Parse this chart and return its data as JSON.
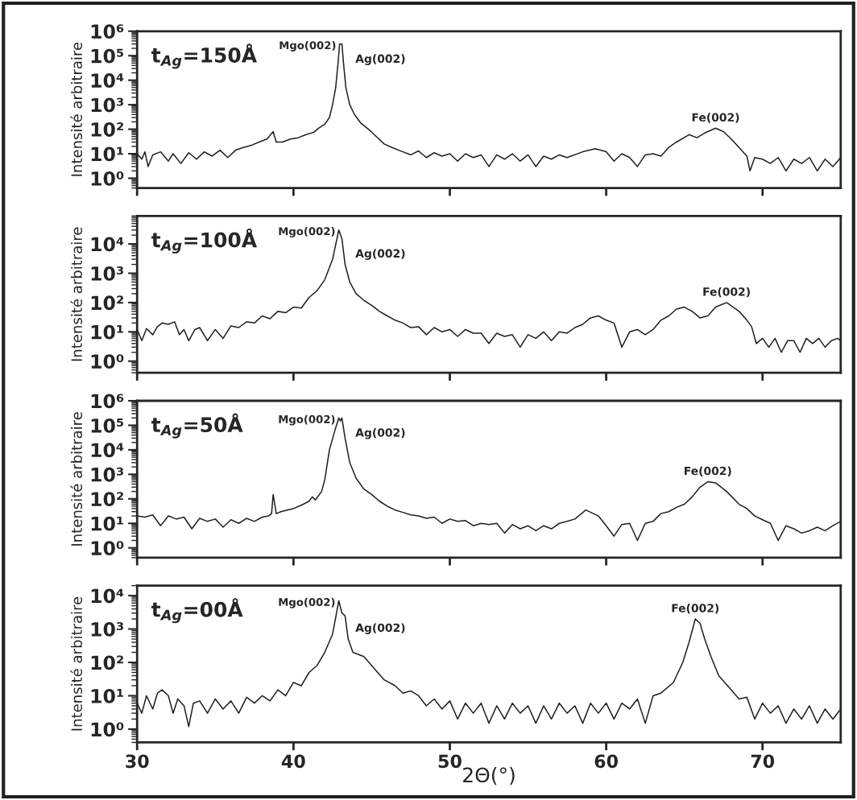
{
  "chart_data": [
    {
      "type": "line",
      "ylabel": "Intensité arbitraire",
      "tick_labels": "y",
      "xlim": [
        30,
        75
      ],
      "xticks": [
        30,
        40,
        50,
        60,
        70
      ],
      "ylim": [
        0.4,
        1000000
      ],
      "yticks": [
        {
          "value": 1,
          "label": "10⁰"
        },
        {
          "value": 10,
          "label": "10¹"
        },
        {
          "value": 100,
          "label": "10²"
        },
        {
          "value": 1000,
          "label": "10³"
        },
        {
          "value": 10000,
          "label": "10⁴"
        },
        {
          "value": 100000,
          "label": "10⁵"
        },
        {
          "value": 1000000,
          "label": "10⁶"
        }
      ],
      "log": "y",
      "annotations": [
        "t$_{Ag}$=150Å",
        {
          "text": "Mgo(002)",
          "x": 42.95,
          "y": 300000
        },
        {
          "text": "Ag(002)",
          "x": 43.1,
          "y": 300000
        },
        {
          "text": "Fe(002)",
          "x": 67,
          "y": 110
        }
      ],
      "series": [
        {
          "color": "#231f20",
          "x": [
            30,
            30.3,
            30.5,
            30.7,
            31,
            31.5,
            32,
            32.3,
            32.8,
            33.3,
            33.8,
            34.3,
            34.8,
            35.3,
            35.8,
            36.3,
            36.8,
            37.3,
            37.8,
            38.3,
            38.7,
            38.9,
            39.3,
            39.8,
            40.3,
            40.8,
            41.3,
            41.6,
            42,
            42.3,
            42.5,
            42.7,
            42.85,
            42.95,
            43.1,
            43.2,
            43.35,
            43.6,
            43.9,
            44.3,
            44.8,
            45.3,
            45.8,
            46.3,
            47,
            47.5,
            48,
            48.5,
            49,
            49.5,
            50,
            50.5,
            51,
            51.5,
            52,
            52.5,
            53,
            53.5,
            54,
            54.5,
            55,
            55.5,
            56,
            56.5,
            57,
            57.5,
            58.5,
            59.3,
            60,
            60.5,
            61,
            61.5,
            62,
            62.5,
            63,
            63.5,
            64,
            64.5,
            65.3,
            65.8,
            66.3,
            67,
            67.5,
            68,
            68.5,
            69,
            69.2,
            69.5,
            70,
            70.5,
            71,
            71.5,
            72,
            72.5,
            73,
            73.5,
            74,
            74.5,
            75
          ],
          "values": [
            10,
            6,
            12,
            3,
            9,
            12,
            5,
            10,
            4,
            11,
            6,
            12,
            8,
            14,
            7,
            14,
            18,
            22,
            30,
            40,
            80,
            30,
            30,
            40,
            45,
            60,
            75,
            110,
            160,
            300,
            1000,
            5000,
            50000,
            300000,
            300000,
            50000,
            5000,
            1000,
            400,
            180,
            100,
            50,
            25,
            18,
            12,
            9,
            13,
            7,
            11,
            8,
            10,
            5,
            10,
            7,
            9,
            3,
            9,
            6,
            10,
            5,
            9,
            3,
            8,
            6,
            9,
            7,
            12,
            16,
            12,
            5,
            10,
            7,
            3,
            9,
            10,
            8,
            18,
            30,
            60,
            45,
            70,
            110,
            80,
            40,
            18,
            8,
            2,
            7,
            6,
            4,
            7,
            2,
            6,
            4,
            7,
            2,
            6,
            3,
            7
          ]
        }
      ]
    },
    {
      "type": "line",
      "ylabel": "Intensité arbitraire",
      "tick_labels": "y",
      "xlim": [
        30,
        75
      ],
      "xticks": [
        30,
        40,
        50,
        60,
        70
      ],
      "ylim": [
        0.4,
        90000
      ],
      "yticks": [
        {
          "value": 1,
          "label": "10⁰"
        },
        {
          "value": 10,
          "label": "10¹"
        },
        {
          "value": 100,
          "label": "10²"
        },
        {
          "value": 1000,
          "label": "10³"
        },
        {
          "value": 10000,
          "label": "10⁴"
        }
      ],
      "log": "y",
      "annotations": [
        "t$_{Ag}$=100Å",
        {
          "text": "Mgo(002)",
          "x": 42.9,
          "y": 30000
        },
        {
          "text": "Ag(002)",
          "x": 43.1,
          "y": 15000
        },
        {
          "text": "Fe(002)",
          "x": 67.7,
          "y": 100
        }
      ],
      "series": [
        {
          "color": "#231f20",
          "x": [
            30,
            30.3,
            30.6,
            31,
            31.3,
            31.6,
            32,
            32.4,
            32.7,
            33,
            33.3,
            33.7,
            34,
            34.5,
            35,
            35.5,
            36,
            36.5,
            37,
            37.5,
            38,
            38.5,
            39,
            39.5,
            40,
            40.5,
            41,
            41.5,
            42,
            42.5,
            42.9,
            43.1,
            43.3,
            43.6,
            44,
            44.5,
            45,
            45.5,
            46,
            46.5,
            47,
            47.5,
            48,
            48.5,
            49,
            49.5,
            50,
            50.5,
            51,
            51.5,
            52,
            52.5,
            53,
            53.5,
            54,
            54.5,
            55,
            55.5,
            56,
            56.5,
            57,
            57.5,
            58,
            58.5,
            59,
            59.5,
            60,
            60.5,
            61,
            61.5,
            62,
            62.5,
            63,
            63.5,
            64,
            64.5,
            65,
            65.5,
            66,
            66.5,
            67,
            67.7,
            68.5,
            69,
            69.3,
            69.6,
            70,
            70.4,
            70.8,
            71.2,
            71.6,
            72,
            72.4,
            72.8,
            73.2,
            73.6,
            74,
            74.4,
            74.8,
            75
          ],
          "values": [
            12,
            5,
            13,
            8,
            15,
            20,
            18,
            22,
            8,
            12,
            5,
            12,
            14,
            5,
            12,
            6,
            16,
            14,
            22,
            20,
            35,
            28,
            50,
            45,
            70,
            65,
            150,
            250,
            600,
            3000,
            30000,
            15000,
            2000,
            500,
            200,
            120,
            80,
            50,
            35,
            25,
            20,
            14,
            15,
            8,
            14,
            10,
            12,
            7,
            12,
            9,
            9,
            4,
            9,
            7,
            8,
            3,
            8,
            6,
            10,
            5,
            10,
            9,
            14,
            18,
            30,
            35,
            25,
            20,
            3,
            10,
            12,
            8,
            12,
            25,
            35,
            60,
            70,
            50,
            30,
            35,
            70,
            100,
            50,
            25,
            15,
            4,
            6,
            3,
            6,
            2,
            5,
            5,
            2,
            6,
            4,
            6,
            3,
            5,
            6,
            5
          ]
        }
      ]
    },
    {
      "type": "line",
      "ylabel": "Intensité arbitraire",
      "tick_labels": "y",
      "xlim": [
        30,
        75
      ],
      "xticks": [
        30,
        40,
        50,
        60,
        70
      ],
      "ylim": [
        0.4,
        1000000
      ],
      "yticks": [
        {
          "value": 1,
          "label": "10⁰"
        },
        {
          "value": 10,
          "label": "10¹"
        },
        {
          "value": 100,
          "label": "10²"
        },
        {
          "value": 1000,
          "label": "10³"
        },
        {
          "value": 10000,
          "label": "10⁴"
        },
        {
          "value": 100000,
          "label": "10⁵"
        },
        {
          "value": 1000000,
          "label": "10⁶"
        }
      ],
      "log": "y",
      "annotations": [
        "t$_{Ag}$=50Å",
        {
          "text": "Mgo(002)",
          "x": 42.9,
          "y": 200000
        },
        {
          "text": "Ag(002)",
          "x": 43.1,
          "y": 200000
        },
        {
          "text": "Fe(002)",
          "x": 66.5,
          "y": 500
        }
      ],
      "series": [
        {
          "color": "#231f20",
          "x": [
            30,
            30.5,
            31,
            31.5,
            32,
            32.5,
            33,
            33.5,
            34,
            34.5,
            35,
            35.5,
            36,
            36.5,
            37,
            37.5,
            38,
            38.4,
            38.6,
            38.7,
            38.9,
            39.2,
            39.6,
            40,
            40.5,
            41,
            41.2,
            41.4,
            41.8,
            42,
            42.3,
            42.7,
            42.9,
            43.0,
            43.1,
            43.3,
            43.6,
            44,
            44.5,
            45,
            45.5,
            46,
            46.5,
            47,
            47.5,
            48,
            48.5,
            49,
            49.5,
            50,
            50.5,
            51,
            51.5,
            52,
            52.5,
            53,
            53.5,
            54,
            54.5,
            55,
            55.5,
            56,
            56.5,
            57,
            57.5,
            58,
            58.7,
            59.5,
            60,
            60.5,
            61,
            61.5,
            62,
            62.5,
            63,
            63.5,
            64,
            64.5,
            65,
            65.5,
            66,
            66.5,
            67,
            67.7,
            68.5,
            69,
            69.5,
            70,
            70.5,
            71,
            71.5,
            72,
            72.5,
            73,
            73.5,
            74,
            74.5,
            75
          ],
          "values": [
            20,
            18,
            22,
            8,
            20,
            15,
            18,
            6,
            16,
            12,
            15,
            7,
            14,
            10,
            16,
            12,
            18,
            20,
            25,
            150,
            25,
            30,
            35,
            40,
            55,
            80,
            120,
            90,
            200,
            600,
            10000,
            80000,
            200000,
            150000,
            200000,
            30000,
            3000,
            700,
            250,
            150,
            80,
            50,
            35,
            28,
            22,
            20,
            16,
            18,
            10,
            15,
            12,
            13,
            8,
            10,
            9,
            10,
            4,
            9,
            6,
            8,
            5,
            8,
            6,
            10,
            12,
            15,
            35,
            20,
            8,
            3,
            9,
            10,
            2,
            10,
            12,
            25,
            30,
            45,
            60,
            120,
            300,
            500,
            450,
            200,
            60,
            40,
            20,
            14,
            10,
            2,
            8,
            6,
            4,
            5,
            7,
            5,
            8,
            12
          ]
        }
      ]
    },
    {
      "type": "line",
      "ylabel": "Intensité arbitraire",
      "xlabel": "2Θ(°)",
      "xlim": [
        30,
        75
      ],
      "xticks": [
        30,
        40,
        50,
        60,
        70
      ],
      "ylim": [
        0.4,
        20000
      ],
      "yticks": [
        {
          "value": 1,
          "label": "10⁰"
        },
        {
          "value": 10,
          "label": "10¹"
        },
        {
          "value": 100,
          "label": "10²"
        },
        {
          "value": 1000,
          "label": "10³"
        },
        {
          "value": 10000,
          "label": "10⁴"
        }
      ],
      "log": "y",
      "annotations": [
        "t$_{Ag}$=00Å",
        {
          "text": "Mgo(002)",
          "x": 42.9,
          "y": 7000
        },
        {
          "text": "Ag(002)",
          "x": 43.1,
          "y": 3000
        },
        {
          "text": "Fe(002)",
          "x": 65.7,
          "y": 2000
        }
      ],
      "series": [
        {
          "color": "#231f20",
          "x": [
            30,
            30.3,
            30.6,
            31,
            31.3,
            31.6,
            32,
            32.3,
            32.6,
            33,
            33.3,
            33.6,
            34,
            34.5,
            35,
            35.5,
            36,
            36.5,
            37,
            37.5,
            38,
            38.5,
            39,
            39.5,
            40,
            40.5,
            41,
            41.5,
            42,
            42.5,
            42.9,
            43.1,
            43.3,
            43.5,
            43.8,
            44.5,
            45,
            45.8,
            46.5,
            47,
            47.5,
            48,
            48.5,
            49,
            49.5,
            50,
            50.5,
            51,
            51.5,
            52,
            52.5,
            53,
            53.5,
            54,
            54.5,
            55,
            55.5,
            56,
            56.5,
            57,
            57.5,
            58,
            58.5,
            59,
            59.5,
            60,
            60.5,
            61,
            61.5,
            62,
            62.5,
            63,
            63.5,
            64.3,
            64.9,
            65.3,
            65.7,
            66,
            66.3,
            66.7,
            67.2,
            68,
            68.5,
            69,
            69.5,
            70,
            70.5,
            71,
            71.5,
            72,
            72.5,
            73,
            73.5,
            74,
            74.5,
            75
          ],
          "values": [
            6,
            3,
            10,
            4,
            12,
            15,
            10,
            3,
            8,
            5,
            1.2,
            6,
            7,
            3,
            8,
            4,
            7,
            3,
            9,
            6,
            10,
            7,
            15,
            10,
            25,
            20,
            50,
            80,
            200,
            700,
            7000,
            3000,
            2500,
            500,
            200,
            150,
            80,
            30,
            20,
            12,
            14,
            10,
            5,
            8,
            4,
            7,
            2,
            6,
            3,
            6,
            1.5,
            5,
            2,
            6,
            3,
            5,
            1.5,
            5,
            2,
            6,
            3,
            5,
            1.5,
            6,
            3,
            6,
            2,
            6,
            4,
            8,
            1.5,
            10,
            12,
            25,
            100,
            400,
            2000,
            1500,
            500,
            150,
            40,
            15,
            8,
            9,
            2,
            6,
            3,
            5,
            1.5,
            4,
            2,
            5,
            1.5,
            4,
            2,
            4
          ]
        }
      ]
    }
  ]
}
